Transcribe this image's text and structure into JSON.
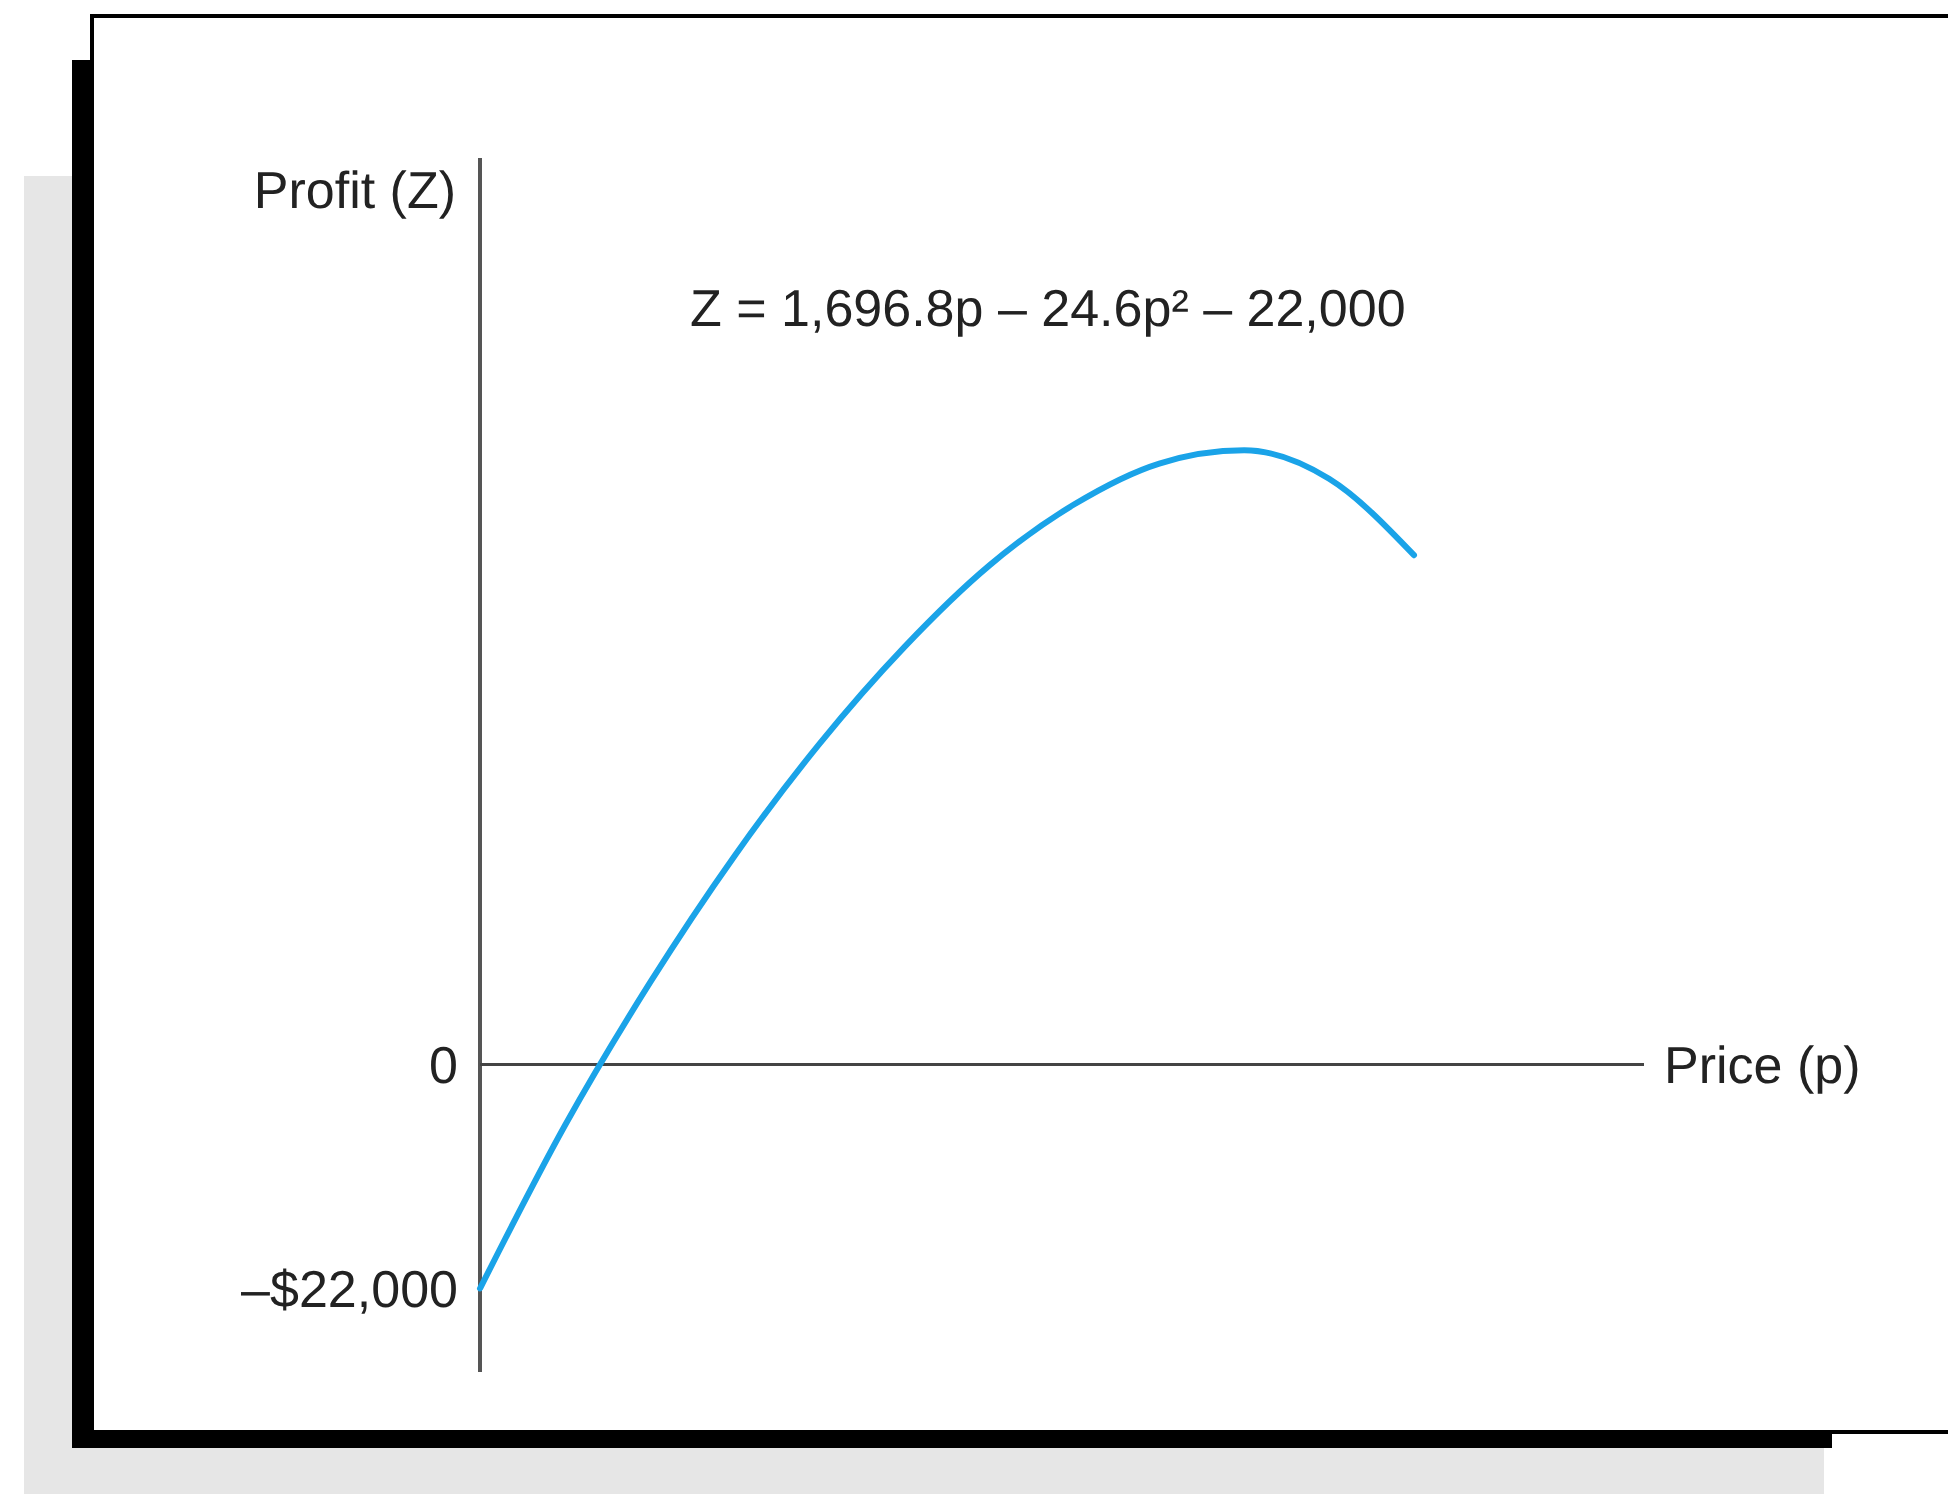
{
  "chart_data": {
    "type": "line",
    "ylabel": "Profit (Z)",
    "xlabel": "Price (p)",
    "annotations": [
      "Z = 1,696.8p – 24.6p² – 22,000"
    ],
    "categories": [
      null,
      null,
      null,
      null,
      null,
      null,
      null,
      null,
      null,
      null,
      null,
      null
    ],
    "series": [
      {
        "color": "#1aa3e8",
        "values": [
          -22000,
          -6000,
          8000,
          20500,
          31500,
          41000,
          49000,
          55000,
          59000,
          60300,
          57500,
          50000
        ]
      }
    ],
    "ylim": [
      -30200,
      89000
    ],
    "yticks": [
      0,
      {
        "value": -22000,
        "label": "–$22,000"
      }
    ],
    "tick_labels": "y",
    "marker": "none",
    "line_style": "solid"
  }
}
